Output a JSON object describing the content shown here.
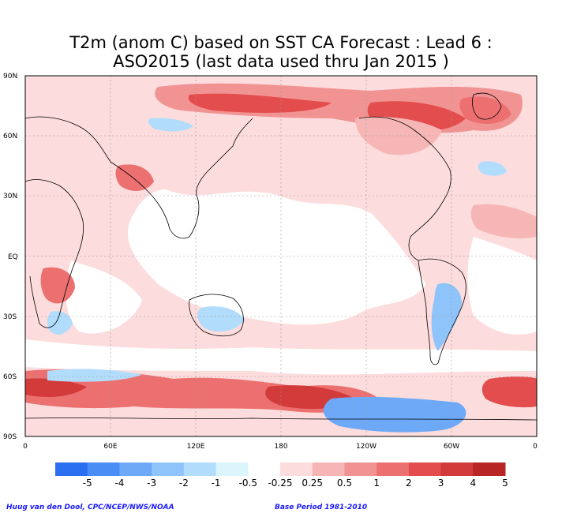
{
  "title": {
    "line1": "T2m (anom C) based on SST CA Forecast : Lead 6 :",
    "line2": "ASO2015 (last data used thru Jan 2015 )"
  },
  "map": {
    "lat_labels": [
      "90N",
      "60N",
      "30N",
      "EQ",
      "30S",
      "60S",
      "90S"
    ],
    "lon_labels": [
      "0",
      "60E",
      "120E",
      "180",
      "120W",
      "60W",
      "0"
    ],
    "grid_style": "dotted",
    "ocean_color": "#ffffff",
    "coast_color": "#000000"
  },
  "legend": {
    "colors": [
      "#2a6ff0",
      "#4a8df5",
      "#6ea9f7",
      "#8fc4fa",
      "#b2dcfb",
      "#dcf5fd",
      "#ffffff",
      "#fcdcdc",
      "#f7b6b6",
      "#f29393",
      "#ec7070",
      "#e34d4d",
      "#d33a3a",
      "#b82525"
    ],
    "boundaries": [
      "-5",
      "-4",
      "-3",
      "-2",
      "-1",
      "-0.5",
      "-0.25",
      "0.25",
      "0.5",
      "1",
      "2",
      "3",
      "4",
      "5"
    ]
  },
  "footer": {
    "credit": "Huug van den Dool, CPC/NCEP/NWS/NOAA",
    "base_period": "Base Period 1981-2010"
  }
}
